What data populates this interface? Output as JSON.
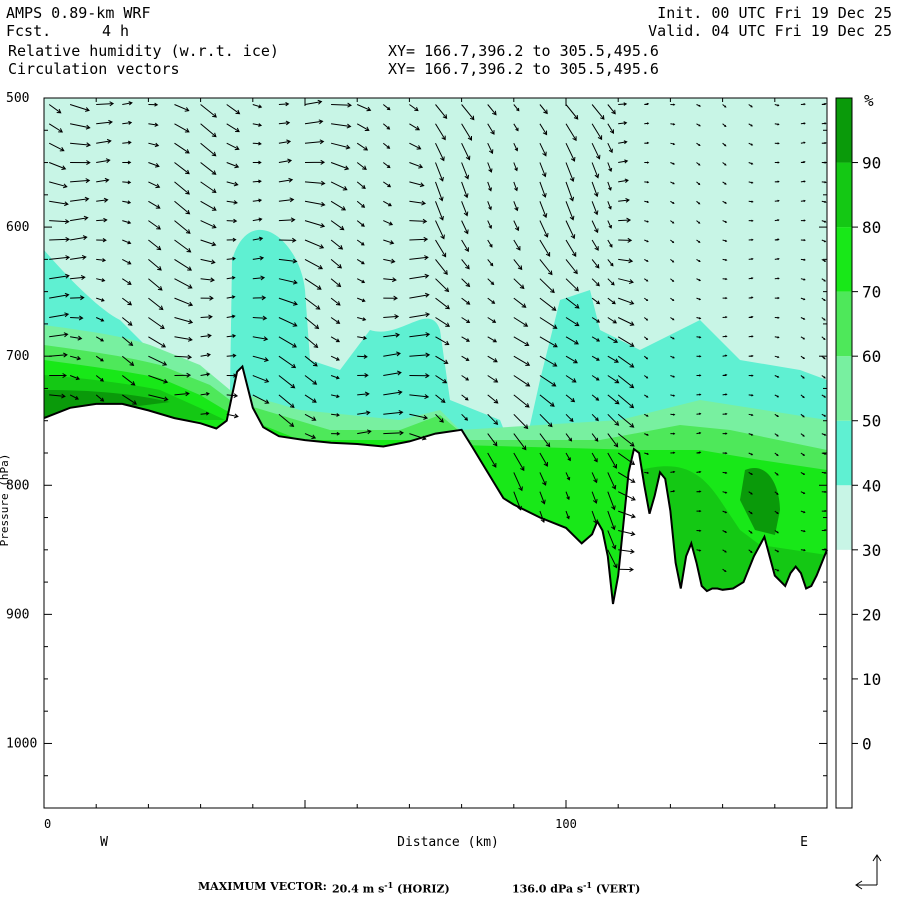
{
  "header": {
    "model": "AMPS 0.89-km WRF",
    "fcst_label": "Fcst.",
    "fcst_value": "4 h",
    "field1": "Relative humidity (w.r.t. ice)",
    "field2": "Circulation vectors",
    "xy1": "XY= 166.7,396.2 to 305.5,495.6",
    "xy2": "XY= 166.7,396.2 to 305.5,495.6",
    "init": "Init. 00 UTC Fri 19 Dec 25",
    "valid": "Valid. 04 UTC Fri 19 Dec 25"
  },
  "footer": {
    "max_vector_label": "MAXIMUM VECTOR:",
    "horiz_value": "20.4 m s",
    "horiz_unit": "(HORIZ)",
    "vert_value": "136.0 dPa s",
    "vert_unit": "(VERT)",
    "exponent": "-1"
  },
  "colors": {
    "band_30_40": "#c8f5e6",
    "band_40_50": "#5ff0d2",
    "band_50_60": "#78f0a0",
    "band_60_70": "#4ee85a",
    "band_70_80": "#18e818",
    "band_80_90": "#14c814",
    "band_90_100": "#0a9a0a",
    "terrain_line": "#000000"
  },
  "chart_data": {
    "type": "heatmap",
    "title": "Relative humidity (w.r.t. ice)",
    "overlay": "Circulation vectors",
    "xlabel": "Distance (km)",
    "ylabel": "Pressure (hPa)",
    "xlim": [
      0,
      150
    ],
    "ylim": [
      1050,
      500
    ],
    "x_ticks": [
      0,
      100
    ],
    "y_ticks": [
      500,
      600,
      700,
      800,
      900,
      1000
    ],
    "x_end_labels": [
      "W",
      "E"
    ],
    "colorbar": {
      "unit": "%",
      "levels": [
        0,
        10,
        20,
        30,
        40,
        50,
        60,
        70,
        80,
        90
      ]
    },
    "terrain_pressure_hpa": {
      "x_km": [
        0,
        5,
        10,
        15,
        20,
        25,
        30,
        33,
        35,
        37,
        38,
        40,
        42,
        45,
        50,
        55,
        60,
        65,
        70,
        75,
        80,
        82,
        85,
        88,
        90,
        95,
        100,
        103,
        105,
        106,
        107,
        108,
        109,
        110,
        111,
        112,
        113,
        114,
        115,
        116,
        117,
        118,
        119,
        120,
        121,
        122,
        123,
        124,
        125,
        126,
        127,
        128,
        129,
        130,
        132,
        134,
        136,
        138,
        140,
        142,
        143,
        144,
        145,
        146,
        147,
        148,
        149,
        150
      ],
      "p_hpa": [
        748,
        740,
        737,
        737,
        742,
        748,
        752,
        756,
        750,
        712,
        708,
        740,
        755,
        762,
        765,
        767,
        768,
        770,
        766,
        760,
        757,
        770,
        790,
        810,
        815,
        825,
        833,
        845,
        838,
        828,
        835,
        855,
        892,
        870,
        830,
        790,
        772,
        775,
        800,
        822,
        808,
        790,
        795,
        820,
        860,
        880,
        855,
        845,
        860,
        878,
        882,
        880,
        880,
        881,
        880,
        875,
        855,
        840,
        870,
        878,
        868,
        863,
        868,
        880,
        878,
        870,
        860,
        850
      ]
    },
    "vector_columns_km": [
      1,
      5,
      10,
      15,
      20,
      25,
      30,
      35,
      40,
      45,
      50,
      55,
      60,
      65,
      70,
      75,
      80,
      85,
      90,
      95,
      100,
      105,
      108,
      110,
      115,
      120,
      125,
      130,
      135,
      140,
      145,
      149
    ]
  }
}
